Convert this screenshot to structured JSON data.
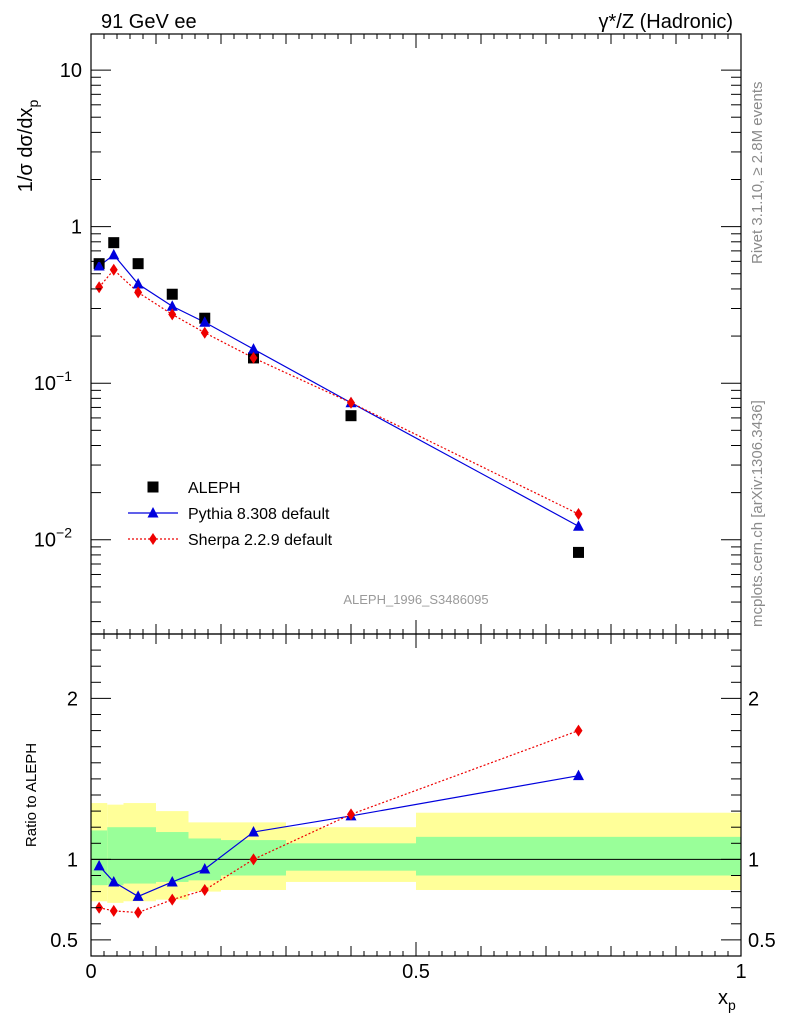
{
  "header": {
    "left": "91 GeV ee",
    "right": "γ*/Z (Hadronic)"
  },
  "side_labels": {
    "rivet": "Rivet 3.1.10, ≥ 2.8M events",
    "source": "mcplots.cern.ch [arXiv:1306.3436]"
  },
  "analysis_label": "ALEPH_1996_S3486095",
  "colors": {
    "data": "#000000",
    "pythia": "#0000dd",
    "sherpa": "#ee0000",
    "band_inner": "#99ff99",
    "band_outer": "#ffff99"
  },
  "chart_data": [
    {
      "type": "scatter",
      "panel": "main",
      "ylabel": "1/σ dσ/dx_p",
      "yscale": "log",
      "ylim": [
        0.0025,
        17
      ],
      "xlim": [
        0,
        1
      ],
      "yticks": [
        {
          "value": 0.01,
          "base": "10",
          "exp": "−2"
        },
        {
          "value": 0.1,
          "base": "10",
          "exp": "−1"
        },
        {
          "value": 1,
          "base": "1",
          "exp": ""
        },
        {
          "value": 10,
          "base": "10",
          "exp": ""
        }
      ],
      "legend_position": "bottom-left",
      "series": [
        {
          "name": "ALEPH",
          "style": "markers-square",
          "x": [
            0.0125,
            0.035,
            0.0725,
            0.125,
            0.175,
            0.25,
            0.4,
            0.75
          ],
          "y": [
            0.58,
            0.79,
            0.58,
            0.37,
            0.26,
            0.145,
            0.062,
            0.0083
          ]
        },
        {
          "name": "Pythia 8.308 default",
          "style": "solid-triangle",
          "x": [
            0.0125,
            0.035,
            0.0725,
            0.125,
            0.175,
            0.25,
            0.4,
            0.75
          ],
          "y": [
            0.56,
            0.66,
            0.43,
            0.31,
            0.245,
            0.165,
            0.075,
            0.0122
          ]
        },
        {
          "name": "Sherpa 2.2.9 default",
          "style": "dotted-diamond",
          "x": [
            0.0125,
            0.035,
            0.0725,
            0.125,
            0.175,
            0.25,
            0.4,
            0.75
          ],
          "y": [
            0.41,
            0.53,
            0.38,
            0.275,
            0.21,
            0.145,
            0.075,
            0.0146
          ]
        }
      ]
    },
    {
      "type": "line",
      "panel": "ratio",
      "ylabel": "Ratio to ALEPH",
      "xlabel": "x_p",
      "ylim": [
        0.4,
        2.4
      ],
      "xlim": [
        0,
        1
      ],
      "yticks": [
        0.5,
        1,
        2
      ],
      "yticklabels": [
        "0.5",
        "1",
        "2"
      ],
      "xticks": [
        0,
        0.5,
        1
      ],
      "xticklabels": [
        "0",
        "0.5",
        "1"
      ],
      "reference_line": 1,
      "uncertainty_bands": [
        {
          "x0": 0.0,
          "x1": 0.025,
          "inner": [
            0.84,
            1.18
          ],
          "outer": [
            0.74,
            1.35
          ]
        },
        {
          "x0": 0.025,
          "x1": 0.05,
          "inner": [
            0.84,
            1.2
          ],
          "outer": [
            0.73,
            1.34
          ]
        },
        {
          "x0": 0.05,
          "x1": 0.1,
          "inner": [
            0.85,
            1.2
          ],
          "outer": [
            0.74,
            1.35
          ]
        },
        {
          "x0": 0.1,
          "x1": 0.15,
          "inner": [
            0.86,
            1.17
          ],
          "outer": [
            0.75,
            1.3
          ]
        },
        {
          "x0": 0.15,
          "x1": 0.2,
          "inner": [
            0.87,
            1.13
          ],
          "outer": [
            0.8,
            1.23
          ]
        },
        {
          "x0": 0.2,
          "x1": 0.3,
          "inner": [
            0.9,
            1.12
          ],
          "outer": [
            0.81,
            1.23
          ]
        },
        {
          "x0": 0.3,
          "x1": 0.5,
          "inner": [
            0.93,
            1.1
          ],
          "outer": [
            0.86,
            1.2
          ]
        },
        {
          "x0": 0.5,
          "x1": 1.0,
          "inner": [
            0.9,
            1.14
          ],
          "outer": [
            0.81,
            1.29
          ]
        }
      ],
      "series": [
        {
          "name": "Pythia 8.308 default",
          "x": [
            0.0125,
            0.035,
            0.0725,
            0.125,
            0.175,
            0.25,
            0.4,
            0.75
          ],
          "y": [
            0.96,
            0.86,
            0.77,
            0.86,
            0.94,
            1.17,
            1.27,
            1.52
          ]
        },
        {
          "name": "Sherpa 2.2.9 default",
          "x": [
            0.0125,
            0.035,
            0.0725,
            0.125,
            0.175,
            0.25,
            0.4,
            0.75
          ],
          "y": [
            0.7,
            0.68,
            0.67,
            0.75,
            0.81,
            1.0,
            1.28,
            1.8
          ]
        }
      ]
    }
  ]
}
